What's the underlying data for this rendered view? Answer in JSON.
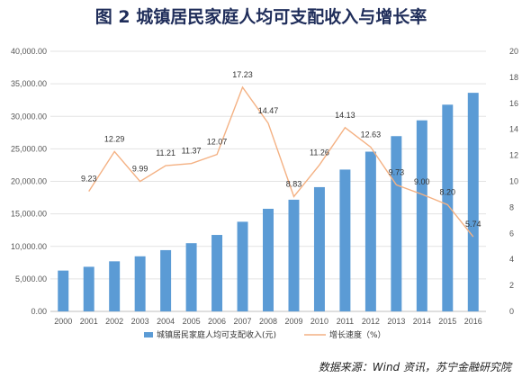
{
  "title": "图 2 城镇居民家庭人均可支配收入与增长率",
  "source": "数据来源：Wind 资讯，苏宁金融研究院",
  "colors": {
    "bar": "#5b9bd5",
    "line": "#f4b183",
    "grid": "#e3e3e3",
    "axis": "#bfbfbf"
  },
  "chart_data": {
    "type": "bar",
    "categories": [
      "2000",
      "2001",
      "2002",
      "2003",
      "2004",
      "2005",
      "2006",
      "2007",
      "2008",
      "2009",
      "2010",
      "2011",
      "2012",
      "2013",
      "2014",
      "2015",
      "2016"
    ],
    "series": [
      {
        "name": "城镇居民家庭人均可支配收入(元)",
        "type": "bar",
        "axis": "left",
        "values": [
          6280,
          6860,
          7703,
          8472,
          9422,
          10493,
          11760,
          13786,
          15781,
          17175,
          19109,
          21810,
          24565,
          26955,
          29381,
          31790,
          33616
        ]
      },
      {
        "name": "增长速度（%）",
        "type": "line",
        "axis": "right",
        "values": [
          null,
          9.23,
          12.29,
          9.99,
          11.21,
          11.37,
          12.07,
          17.23,
          14.47,
          8.83,
          11.26,
          14.13,
          12.63,
          9.73,
          9.0,
          8.2,
          5.74
        ],
        "labels": [
          "",
          "9.23",
          "12.29",
          "9.99",
          "11.21",
          "11.37",
          "12.07",
          "17.23",
          "14.47",
          "8.83",
          "11.26",
          "14.13",
          "12.63",
          "9.73",
          "9.00",
          "8.20",
          "5.74"
        ]
      }
    ],
    "y_left": {
      "lim": [
        0,
        40000
      ],
      "ticks": [
        0,
        5000,
        10000,
        15000,
        20000,
        25000,
        30000,
        35000,
        40000
      ],
      "tick_labels": [
        "0.00",
        "5,000.00",
        "10,000.00",
        "15,000.00",
        "20,000.00",
        "25,000.00",
        "30,000.00",
        "35,000.00",
        "40,000.00"
      ]
    },
    "y_right": {
      "lim": [
        0,
        20
      ],
      "ticks": [
        0,
        2,
        4,
        6,
        8,
        10,
        12,
        14,
        16,
        18,
        20
      ],
      "tick_labels": [
        "0",
        "2",
        "4",
        "6",
        "8",
        "10",
        "12",
        "14",
        "16",
        "18",
        "20"
      ]
    },
    "grid": true,
    "legend": "bottom"
  }
}
